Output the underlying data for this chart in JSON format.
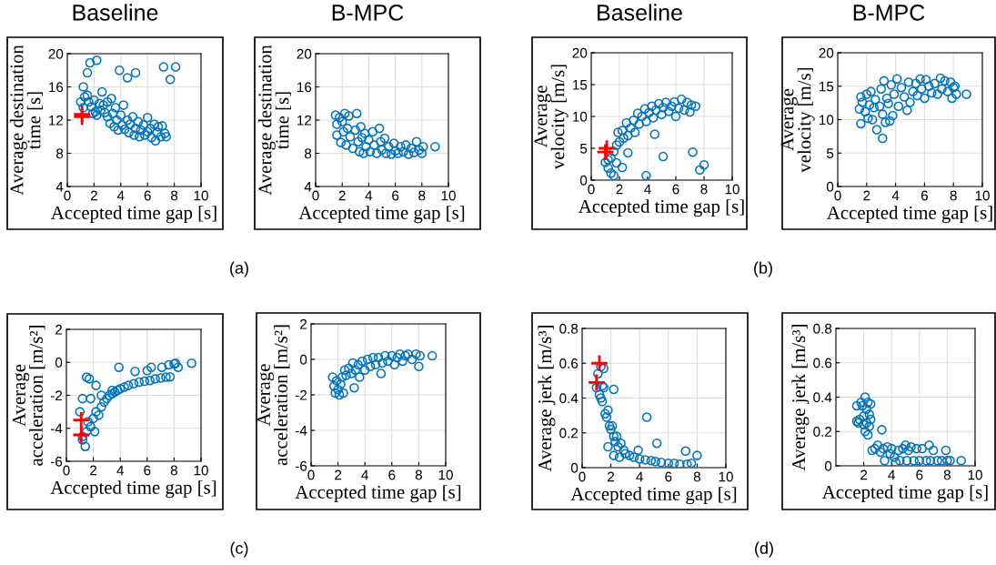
{
  "chart_data": [
    {
      "type": "scatter",
      "title": "Baseline",
      "xlabel": "Accepted time gap [s]",
      "ylabel": "Average destination\ntime [s]",
      "xlim": [
        0,
        10
      ],
      "ylim": [
        4,
        20
      ],
      "xticks": [
        0,
        2,
        4,
        6,
        8,
        10
      ],
      "yticks": [
        4,
        8,
        12,
        16,
        20
      ],
      "grid": true,
      "annotations": [
        "(a)"
      ],
      "series": [
        {
          "color": "#0072bd",
          "marker": "circle",
          "x": [
            1.2,
            1.5,
            1.7,
            2.2,
            2.6,
            3.9,
            4.5,
            5.1,
            7.2,
            7.7,
            8.1,
            1.0,
            1.2,
            1.3,
            1.5,
            1.6,
            1.8,
            1.9,
            2.0,
            2.1,
            2.2,
            2.4,
            2.5,
            2.7,
            2.8,
            3.0,
            3.0,
            3.2,
            3.3,
            3.4,
            3.5,
            3.6,
            3.7,
            3.8,
            4.0,
            4.1,
            4.2,
            4.3,
            4.5,
            4.6,
            4.7,
            4.9,
            5.0,
            5.1,
            5.3,
            5.4,
            5.5,
            5.7,
            5.8,
            6.0,
            6.0,
            6.2,
            6.3,
            6.5,
            6.6,
            6.7,
            6.8,
            7.0,
            7.1,
            7.3,
            7.4
          ],
          "values": [
            16.0,
            17.7,
            18.9,
            19.2,
            15.4,
            18.0,
            17.1,
            17.7,
            18.4,
            16.9,
            18.4,
            14.2,
            13.5,
            14.8,
            15.0,
            14.2,
            13.6,
            12.8,
            14.4,
            13.0,
            12.6,
            14.0,
            13.2,
            13.8,
            12.9,
            14.2,
            12.4,
            11.6,
            14.6,
            12.8,
            11.2,
            13.5,
            12.0,
            10.8,
            12.6,
            11.4,
            13.8,
            10.9,
            12.0,
            10.5,
            11.5,
            12.4,
            10.2,
            11.0,
            11.8,
            10.0,
            10.8,
            11.4,
            10.2,
            12.3,
            10.6,
            11.0,
            9.9,
            11.5,
            9.5,
            10.5,
            11.2,
            10.0,
            11.3,
            10.4,
            10.0
          ]
        },
        {
          "color": "#ff0000",
          "marker": "cross",
          "x": [
            1.1,
            1.1
          ],
          "values": [
            12.7,
            12.4
          ]
        }
      ]
    },
    {
      "type": "scatter",
      "title": "B-MPC",
      "xlabel": "Accepted time gap [s]",
      "ylabel": "Average destination\ntime [s]",
      "xlim": [
        0,
        10
      ],
      "ylim": [
        4,
        20
      ],
      "xticks": [
        0,
        2,
        4,
        6,
        8,
        10
      ],
      "yticks": [
        4,
        8,
        12,
        16,
        20
      ],
      "grid": true,
      "series": [
        {
          "color": "#0072bd",
          "marker": "circle",
          "x": [
            1.5,
            1.6,
            1.6,
            1.8,
            1.9,
            2.0,
            2.1,
            2.2,
            2.3,
            2.4,
            2.5,
            2.6,
            2.8,
            3.0,
            3.1,
            3.2,
            3.3,
            3.4,
            3.5,
            3.6,
            3.7,
            3.8,
            4.0,
            4.1,
            4.3,
            4.4,
            4.6,
            4.8,
            4.9,
            5.0,
            5.2,
            5.3,
            5.5,
            5.7,
            5.9,
            6.0,
            6.2,
            6.4,
            6.6,
            6.8,
            7.0,
            7.2,
            7.4,
            7.6,
            7.8,
            8.0,
            8.1,
            9.0
          ],
          "values": [
            12.6,
            11.5,
            10.2,
            12.3,
            9.3,
            11.8,
            10.6,
            12.8,
            9.0,
            11.0,
            12.5,
            10.0,
            8.6,
            10.8,
            12.8,
            9.4,
            8.2,
            11.2,
            9.9,
            8.0,
            10.4,
            8.8,
            9.6,
            8.2,
            10.6,
            9.0,
            8.0,
            11.0,
            9.4,
            8.4,
            9.8,
            8.0,
            8.8,
            7.9,
            9.2,
            8.3,
            8.0,
            8.8,
            8.2,
            9.0,
            7.9,
            8.6,
            8.1,
            9.4,
            8.4,
            8.0,
            8.8,
            8.8
          ]
        }
      ]
    },
    {
      "type": "scatter",
      "title": "Baseline",
      "xlabel": "Accepted time gap [s]",
      "ylabel": "Average\nvelocity [m/s]",
      "xlim": [
        0,
        10
      ],
      "ylim": [
        0,
        20
      ],
      "xticks": [
        0,
        2,
        4,
        6,
        8,
        10
      ],
      "yticks": [
        0,
        5,
        10,
        15,
        20
      ],
      "grid": true,
      "annotations": [
        "(b)"
      ],
      "series": [
        {
          "color": "#0072bd",
          "marker": "circle",
          "x": [
            1.0,
            1.2,
            1.4,
            1.6,
            1.8,
            2.2,
            2.6,
            3.9,
            4.5,
            5.1,
            7.2,
            7.7,
            8.0,
            1.2,
            1.4,
            1.6,
            1.8,
            1.9,
            2.0,
            2.2,
            2.3,
            2.5,
            2.6,
            2.8,
            3.0,
            3.1,
            3.3,
            3.4,
            3.6,
            3.8,
            3.9,
            4.1,
            4.3,
            4.4,
            4.6,
            4.8,
            5.0,
            5.1,
            5.3,
            5.5,
            5.7,
            5.9,
            6.0,
            6.2,
            6.4,
            6.6,
            6.8,
            7.0,
            7.1,
            7.4
          ],
          "values": [
            2.8,
            1.9,
            1.1,
            0.7,
            2.7,
            2.0,
            4.3,
            0.7,
            7.2,
            3.7,
            4.4,
            1.6,
            2.4,
            3.2,
            3.5,
            4.5,
            5.5,
            7.5,
            6.0,
            7.8,
            6.6,
            9.0,
            7.0,
            8.2,
            9.4,
            7.5,
            10.5,
            8.8,
            10.0,
            11.2,
            9.2,
            10.6,
            11.6,
            9.8,
            11.0,
            12.0,
            10.3,
            11.4,
            12.2,
            10.8,
            11.6,
            12.3,
            10.0,
            11.3,
            12.7,
            11.0,
            12.2,
            10.7,
            11.8,
            11.6
          ]
        },
        {
          "color": "#ff0000",
          "marker": "cross",
          "x": [
            1.1,
            1.0
          ],
          "values": [
            5.0,
            4.4
          ]
        }
      ]
    },
    {
      "type": "scatter",
      "title": "B-MPC",
      "xlabel": "Accepted time gap [s]",
      "ylabel": "Average\nvelocity [m/s]",
      "xlim": [
        0,
        10
      ],
      "ylim": [
        0,
        20
      ],
      "xticks": [
        0,
        2,
        4,
        6,
        8,
        10
      ],
      "yticks": [
        0,
        5,
        10,
        15,
        20
      ],
      "grid": true,
      "series": [
        {
          "color": "#0072bd",
          "marker": "circle",
          "x": [
            1.6,
            1.5,
            1.6,
            1.7,
            1.9,
            2.0,
            2.1,
            2.2,
            2.3,
            2.4,
            2.5,
            2.6,
            2.7,
            2.9,
            3.0,
            3.1,
            3.1,
            3.2,
            3.3,
            3.4,
            3.5,
            3.6,
            3.7,
            3.8,
            3.9,
            4.1,
            4.2,
            4.4,
            4.6,
            4.8,
            4.9,
            5.0,
            5.2,
            5.4,
            5.5,
            5.7,
            5.8,
            6.0,
            6.1,
            6.3,
            6.5,
            6.7,
            6.9,
            7.1,
            7.2,
            7.4,
            7.6,
            7.8,
            7.9,
            8.0,
            8.1,
            8.2,
            8.9
          ],
          "values": [
            9.4,
            11.6,
            13.4,
            12.6,
            11.2,
            13.8,
            10.2,
            12.2,
            14.2,
            10.0,
            11.8,
            13.0,
            8.5,
            12.0,
            14.6,
            7.2,
            10.8,
            15.8,
            9.6,
            13.2,
            12.4,
            9.8,
            15.2,
            10.6,
            13.8,
            16.1,
            12.0,
            14.8,
            13.4,
            11.4,
            15.6,
            12.6,
            14.2,
            15.4,
            13.6,
            16.1,
            14.6,
            13.2,
            16.0,
            15.0,
            14.0,
            15.4,
            13.8,
            16.2,
            14.6,
            15.8,
            14.2,
            15.6,
            13.2,
            14.8,
            15.0,
            13.8,
            13.8
          ]
        }
      ]
    },
    {
      "type": "scatter",
      "xlabel": "Accepted time gap [s]",
      "ylabel": "Average\nacceleration [m/s²]",
      "xlim": [
        0,
        10
      ],
      "ylim": [
        -6,
        2
      ],
      "xticks": [
        0,
        2,
        4,
        6,
        8,
        10
      ],
      "yticks": [
        -6,
        -4,
        -2,
        0,
        2
      ],
      "grid": true,
      "annotations": [
        "(c)"
      ],
      "series": [
        {
          "color": "#0072bd",
          "marker": "circle",
          "x": [
            1.5,
            1.7,
            2.2,
            1.2,
            1.8,
            2.6,
            3.4,
            3.9,
            5.1,
            6.0,
            6.3,
            7.1,
            7.6,
            8.0,
            8.1,
            8.3,
            9.3,
            1.4,
            1.2,
            1.0,
            1.2,
            1.5,
            1.6,
            1.8,
            2.0,
            2.1,
            2.2,
            2.4,
            2.6,
            2.8,
            3.0,
            3.2,
            3.4,
            3.6,
            3.8,
            4.0,
            4.3,
            4.6,
            5.0,
            5.4,
            5.8,
            6.2,
            6.6,
            7.0,
            7.4,
            7.7
          ],
          "values": [
            -0.9,
            -1.0,
            -1.4,
            -2.2,
            -2.2,
            -2.0,
            -1.7,
            -0.3,
            -0.55,
            -0.5,
            -0.3,
            -0.3,
            -0.15,
            -0.1,
            -0.05,
            -0.3,
            -0.05,
            -5.1,
            -4.7,
            -3.0,
            -4.5,
            -4.2,
            -3.6,
            -3.9,
            -3.4,
            -4.2,
            -3.0,
            -3.2,
            -2.7,
            -2.4,
            -2.2,
            -2.0,
            -1.9,
            -1.8,
            -1.7,
            -1.6,
            -1.5,
            -1.4,
            -1.3,
            -1.2,
            -1.15,
            -1.1,
            -1.0,
            -0.95,
            -0.9,
            -0.88
          ]
        },
        {
          "color": "#ff0000",
          "marker": "cross",
          "x": [
            1.1,
            1.1
          ],
          "values": [
            -3.5,
            -4.4
          ]
        }
      ]
    },
    {
      "type": "scatter",
      "xlabel": "Accepted time gap [s]",
      "ylabel": "Average\nacceleration [m/s²]",
      "xlim": [
        0,
        10
      ],
      "ylim": [
        -6,
        2
      ],
      "xticks": [
        0,
        2,
        4,
        6,
        8,
        10
      ],
      "yticks": [
        -6,
        -4,
        -2,
        0,
        2
      ],
      "grid": true,
      "series": [
        {
          "color": "#0072bd",
          "marker": "circle",
          "x": [
            1.6,
            1.7,
            1.8,
            1.9,
            2.0,
            2.1,
            2.2,
            2.3,
            2.4,
            2.5,
            2.6,
            2.8,
            3.0,
            3.1,
            3.2,
            3.3,
            3.5,
            3.6,
            3.8,
            4.0,
            4.2,
            4.4,
            4.6,
            4.8,
            5.0,
            5.2,
            5.3,
            5.5,
            5.7,
            6.0,
            6.2,
            6.4,
            6.6,
            6.8,
            7.0,
            7.2,
            7.5,
            7.8,
            8.0,
            8.1,
            9.0
          ],
          "values": [
            -1.0,
            -1.5,
            -1.9,
            -1.2,
            -1.7,
            -2.0,
            -1.4,
            -1.0,
            -1.9,
            -0.6,
            -0.9,
            -0.5,
            -0.8,
            -0.2,
            -1.6,
            -0.6,
            -0.3,
            -1.0,
            -0.1,
            -0.6,
            0.0,
            -0.4,
            0.1,
            -0.3,
            0.1,
            -0.8,
            -0.2,
            0.2,
            -0.1,
            0.2,
            -0.3,
            0.1,
            0.3,
            -0.1,
            0.2,
            0.3,
            0.0,
            0.3,
            -0.4,
            0.2,
            0.2
          ]
        }
      ]
    },
    {
      "type": "scatter",
      "xlabel": "Accepted time gap [s]",
      "ylabel": "Average jerk [m/s³]",
      "xlim": [
        0,
        10
      ],
      "ylim": [
        0,
        0.8
      ],
      "xticks": [
        0,
        2,
        4,
        6,
        8,
        10
      ],
      "yticks": [
        0,
        0.2,
        0.4,
        0.6,
        0.8
      ],
      "grid": true,
      "annotations": [
        "(d)"
      ],
      "series": [
        {
          "color": "#0072bd",
          "marker": "circle",
          "x": [
            1.0,
            1.1,
            1.2,
            1.3,
            1.3,
            1.4,
            1.4,
            1.5,
            1.5,
            1.6,
            1.7,
            1.8,
            1.9,
            1.8,
            2.0,
            2.1,
            2.2,
            2.2,
            2.3,
            2.2,
            2.4,
            2.5,
            2.6,
            2.7,
            2.9,
            3.0,
            3.3,
            3.6,
            3.9,
            4.0,
            4.4,
            4.5,
            4.8,
            5.1,
            5.2,
            5.5,
            6.0,
            6.4,
            6.8,
            7.2,
            7.3,
            7.6,
            8.0
          ],
          "values": [
            0.46,
            0.54,
            0.42,
            0.4,
            0.58,
            0.38,
            0.47,
            0.57,
            0.46,
            0.31,
            0.29,
            0.33,
            0.24,
            0.12,
            0.22,
            0.24,
            0.45,
            0.18,
            0.15,
            0.07,
            0.18,
            0.12,
            0.06,
            0.14,
            0.1,
            0.08,
            0.07,
            0.06,
            0.1,
            0.05,
            0.045,
            0.29,
            0.04,
            0.035,
            0.14,
            0.03,
            0.025,
            0.025,
            0.02,
            0.095,
            0.02,
            0.025,
            0.07
          ]
        },
        {
          "color": "#ff0000",
          "marker": "cross",
          "x": [
            1.2,
            1.0
          ],
          "values": [
            0.6,
            0.49
          ]
        }
      ]
    },
    {
      "type": "scatter",
      "xlabel": "Accepted time gap [s]",
      "ylabel": "Average jerk [m/s³]",
      "xlim": [
        0,
        10
      ],
      "ylim": [
        0,
        0.8
      ],
      "xticks": [
        2,
        4,
        6,
        8,
        10
      ],
      "yticks": [
        0,
        0.2,
        0.4,
        0.6,
        0.8
      ],
      "grid": true,
      "series": [
        {
          "color": "#0072bd",
          "marker": "circle",
          "x": [
            1.5,
            1.5,
            1.6,
            1.7,
            1.8,
            1.9,
            2.0,
            2.0,
            2.1,
            2.1,
            2.2,
            2.2,
            2.3,
            2.3,
            2.4,
            2.4,
            2.5,
            2.5,
            2.6,
            2.8,
            3.0,
            3.2,
            3.3,
            3.4,
            3.5,
            3.7,
            3.9,
            4.0,
            4.2,
            4.3,
            4.5,
            4.6,
            4.8,
            5.0,
            5.1,
            5.2,
            5.4,
            5.6,
            5.8,
            6.0,
            6.2,
            6.5,
            6.7,
            6.8,
            7.0,
            7.3,
            7.6,
            7.9,
            8.0,
            8.2,
            9.0
          ],
          "values": [
            0.35,
            0.26,
            0.25,
            0.27,
            0.37,
            0.35,
            0.29,
            0.24,
            0.4,
            0.2,
            0.33,
            0.25,
            0.37,
            0.18,
            0.3,
            0.23,
            0.36,
            0.27,
            0.09,
            0.1,
            0.12,
            0.08,
            0.21,
            0.1,
            0.03,
            0.11,
            0.07,
            0.1,
            0.05,
            0.02,
            0.09,
            0.03,
            0.1,
            0.12,
            0.03,
            0.09,
            0.11,
            0.03,
            0.1,
            0.03,
            0.1,
            0.03,
            0.12,
            0.03,
            0.09,
            0.03,
            0.03,
            0.09,
            0.03,
            0.03,
            0.03
          ]
        }
      ]
    }
  ]
}
